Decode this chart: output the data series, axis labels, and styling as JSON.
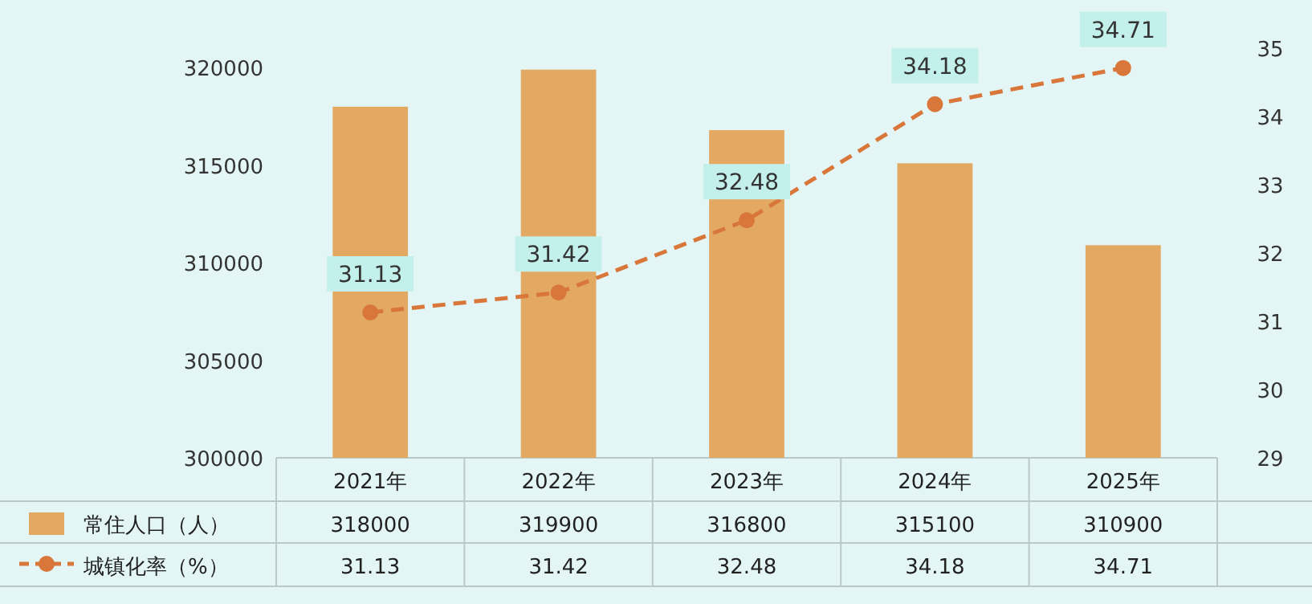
{
  "chart_data": {
    "type": "bar",
    "categories": [
      "2021年",
      "2022年",
      "2023年",
      "2024年",
      "2025年"
    ],
    "series": [
      {
        "name": "常住人口（人）",
        "color": "#e3a862",
        "values": [
          318000,
          319900,
          316800,
          315100,
          310900
        ]
      },
      {
        "name": "城镇化率（%）",
        "type": "line",
        "axis": "y2",
        "color": "#d9773a",
        "marker": "circle",
        "line_style": "dashed",
        "values": [
          31.13,
          31.42,
          32.48,
          34.18,
          34.71
        ]
      }
    ],
    "annotations": [
      "31.13",
      "31.42",
      "32.48",
      "34.18",
      "34.71"
    ],
    "ylim": [
      300000,
      321000
    ],
    "yticks": [
      300000,
      305000,
      310000,
      315000,
      320000
    ],
    "y2lim": [
      29,
      35
    ],
    "y2ticks": [
      29,
      30,
      31,
      32,
      33,
      34,
      35
    ],
    "data_labels": true,
    "legend": "bottom left",
    "grid": false
  }
}
